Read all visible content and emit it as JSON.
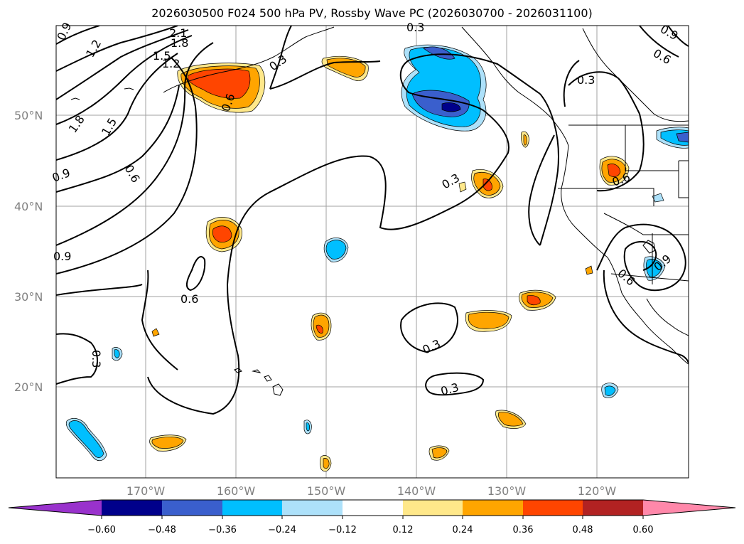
{
  "title": "2026030500 F024 500 hPa PV, Rossby Wave PC (2026030700 - 2026031100)",
  "map": {
    "lat_labels": [
      "50°N",
      "40°N",
      "30°N",
      "20°N"
    ],
    "lon_labels": [
      "170°W",
      "160°W",
      "150°W",
      "140°W",
      "130°W",
      "120°W"
    ]
  },
  "contour_labels": [
    "0.9",
    "2.1",
    "1.8",
    "1.5",
    "1.2",
    "0.9",
    "1.8",
    "1.5",
    "0.6",
    "0.9",
    "0.9",
    "0.6",
    "0.3",
    "0.6",
    "0.3",
    "0.3",
    "0.3",
    "0.3",
    "0.3",
    "0.6",
    "0.9",
    "0.6",
    "0.9",
    "0.6",
    "0.6",
    "0.3"
  ],
  "colorbar": {
    "ticks": [
      "−0.60",
      "−0.48",
      "−0.36",
      "−0.24",
      "−0.12",
      "0.12",
      "0.24",
      "0.36",
      "0.48",
      "0.60"
    ],
    "colors": [
      "#9932CC",
      "#00008B",
      "#3A5FCD",
      "#00BFFF",
      "#ADE1FA",
      "#FFFFFF",
      "#FFE88A",
      "#FFA500",
      "#FF4500",
      "#B22222",
      "#FF88AA"
    ]
  }
}
